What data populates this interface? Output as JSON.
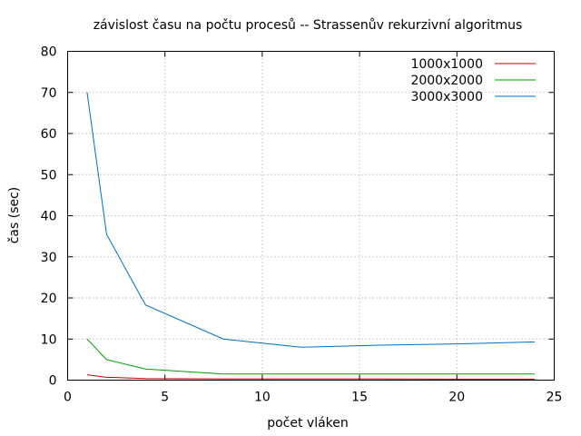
{
  "chart_data": {
    "type": "line",
    "title": "závislost času na počtu procesů -- Strassenův rekurzivní algoritmus",
    "xlabel": "počet vláken",
    "ylabel": "čas (sec)",
    "xlim": [
      0,
      25
    ],
    "ylim": [
      0,
      80
    ],
    "xticks": [
      0,
      5,
      10,
      15,
      20,
      25
    ],
    "yticks": [
      0,
      10,
      20,
      30,
      40,
      50,
      60,
      70,
      80
    ],
    "grid": true,
    "legend_position": "top-right",
    "series": [
      {
        "name": "1000x1000",
        "color": "#c00000",
        "x": [
          1,
          2,
          4,
          8,
          12,
          16,
          20,
          24
        ],
        "y": [
          1.3,
          0.7,
          0.4,
          0.3,
          0.3,
          0.3,
          0.25,
          0.25
        ]
      },
      {
        "name": "2000x2000",
        "color": "#00a000",
        "x": [
          1,
          2,
          4,
          8,
          12,
          16,
          20,
          24
        ],
        "y": [
          10,
          5,
          2.7,
          1.5,
          1.5,
          1.5,
          1.5,
          1.5
        ]
      },
      {
        "name": "3000x3000",
        "color": "#0070c0",
        "x": [
          1,
          2,
          4,
          8,
          12,
          16,
          20,
          24
        ],
        "y": [
          70,
          35.5,
          18.3,
          10,
          8,
          8.5,
          8.8,
          9.3
        ]
      }
    ]
  }
}
